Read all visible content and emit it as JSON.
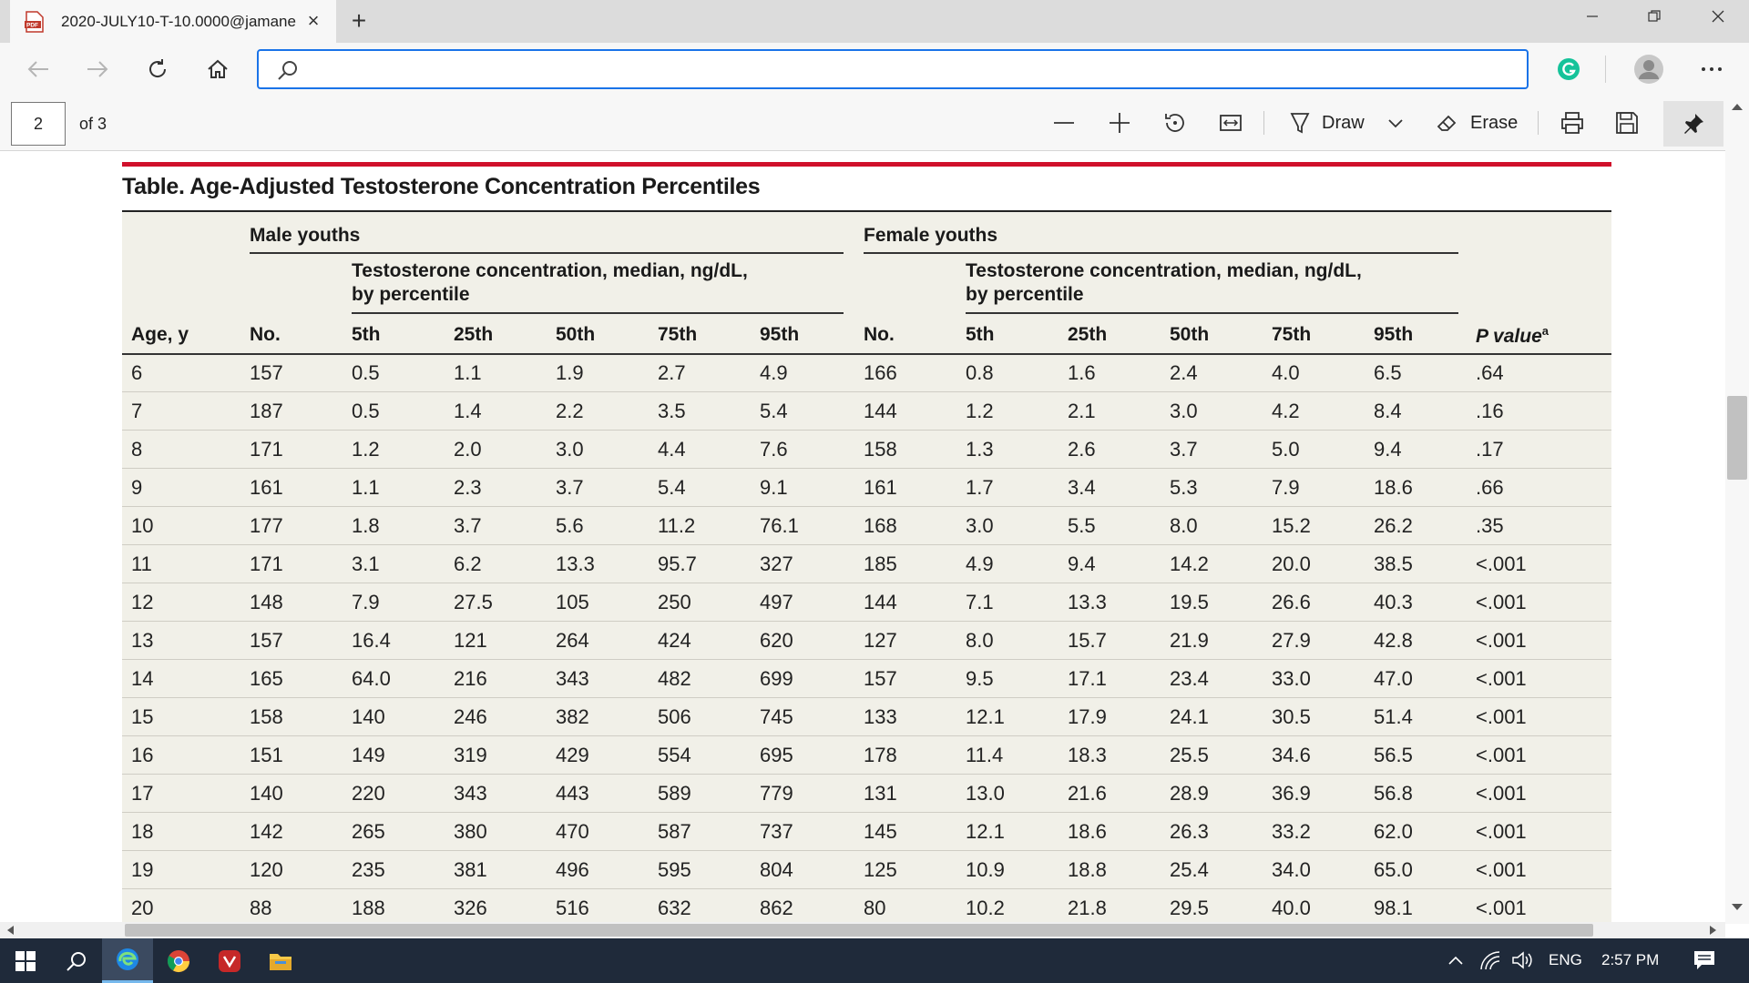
{
  "browser": {
    "tab_title": "2020-JULY10-T-10.0000@jamane",
    "address_value": ""
  },
  "pdf_toolbar": {
    "page_number": "2",
    "page_of": "of 3",
    "draw_label": "Draw",
    "erase_label": "Erase"
  },
  "document": {
    "title": "Table. Age-Adjusted Testosterone Concentration Percentiles",
    "group_male": "Male youths",
    "group_female": "Female youths",
    "sub_header_line1": "Testosterone concentration, median, ng/dL,",
    "sub_header_line2": "by percentile",
    "columns": {
      "age": "Age, y",
      "no": "No.",
      "p5": "5th",
      "p25": "25th",
      "p50": "50th",
      "p75": "75th",
      "p95": "95th",
      "pvalue": "P value",
      "pvalue_sup": "a"
    },
    "rows": [
      [
        "6",
        "157",
        "0.5",
        "1.1",
        "1.9",
        "2.7",
        "4.9",
        "166",
        "0.8",
        "1.6",
        "2.4",
        "4.0",
        "6.5",
        ".64"
      ],
      [
        "7",
        "187",
        "0.5",
        "1.4",
        "2.2",
        "3.5",
        "5.4",
        "144",
        "1.2",
        "2.1",
        "3.0",
        "4.2",
        "8.4",
        ".16"
      ],
      [
        "8",
        "171",
        "1.2",
        "2.0",
        "3.0",
        "4.4",
        "7.6",
        "158",
        "1.3",
        "2.6",
        "3.7",
        "5.0",
        "9.4",
        ".17"
      ],
      [
        "9",
        "161",
        "1.1",
        "2.3",
        "3.7",
        "5.4",
        "9.1",
        "161",
        "1.7",
        "3.4",
        "5.3",
        "7.9",
        "18.6",
        ".66"
      ],
      [
        "10",
        "177",
        "1.8",
        "3.7",
        "5.6",
        "11.2",
        "76.1",
        "168",
        "3.0",
        "5.5",
        "8.0",
        "15.2",
        "26.2",
        ".35"
      ],
      [
        "11",
        "171",
        "3.1",
        "6.2",
        "13.3",
        "95.7",
        "327",
        "185",
        "4.9",
        "9.4",
        "14.2",
        "20.0",
        "38.5",
        "<.001"
      ],
      [
        "12",
        "148",
        "7.9",
        "27.5",
        "105",
        "250",
        "497",
        "144",
        "7.1",
        "13.3",
        "19.5",
        "26.6",
        "40.3",
        "<.001"
      ],
      [
        "13",
        "157",
        "16.4",
        "121",
        "264",
        "424",
        "620",
        "127",
        "8.0",
        "15.7",
        "21.9",
        "27.9",
        "42.8",
        "<.001"
      ],
      [
        "14",
        "165",
        "64.0",
        "216",
        "343",
        "482",
        "699",
        "157",
        "9.5",
        "17.1",
        "23.4",
        "33.0",
        "47.0",
        "<.001"
      ],
      [
        "15",
        "158",
        "140",
        "246",
        "382",
        "506",
        "745",
        "133",
        "12.1",
        "17.9",
        "24.1",
        "30.5",
        "51.4",
        "<.001"
      ],
      [
        "16",
        "151",
        "149",
        "319",
        "429",
        "554",
        "695",
        "178",
        "11.4",
        "18.3",
        "25.5",
        "34.6",
        "56.5",
        "<.001"
      ],
      [
        "17",
        "140",
        "220",
        "343",
        "443",
        "589",
        "779",
        "131",
        "13.0",
        "21.6",
        "28.9",
        "36.9",
        "56.8",
        "<.001"
      ],
      [
        "18",
        "142",
        "265",
        "380",
        "470",
        "587",
        "737",
        "145",
        "12.1",
        "18.6",
        "26.3",
        "33.2",
        "62.0",
        "<.001"
      ],
      [
        "19",
        "120",
        "235",
        "381",
        "496",
        "595",
        "804",
        "125",
        "10.9",
        "18.8",
        "25.4",
        "34.0",
        "65.0",
        "<.001"
      ],
      [
        "20",
        "88",
        "188",
        "326",
        "516",
        "632",
        "862",
        "80",
        "10.2",
        "21.8",
        "29.5",
        "40.0",
        "98.1",
        "<.001"
      ]
    ]
  },
  "taskbar": {
    "language": "ENG",
    "time": "2:57 PM"
  },
  "colors": {
    "accent_red": "#d0102b",
    "table_bg": "#f1f0e8",
    "address_border": "#1a73e8",
    "taskbar": "#1f2a3a"
  }
}
